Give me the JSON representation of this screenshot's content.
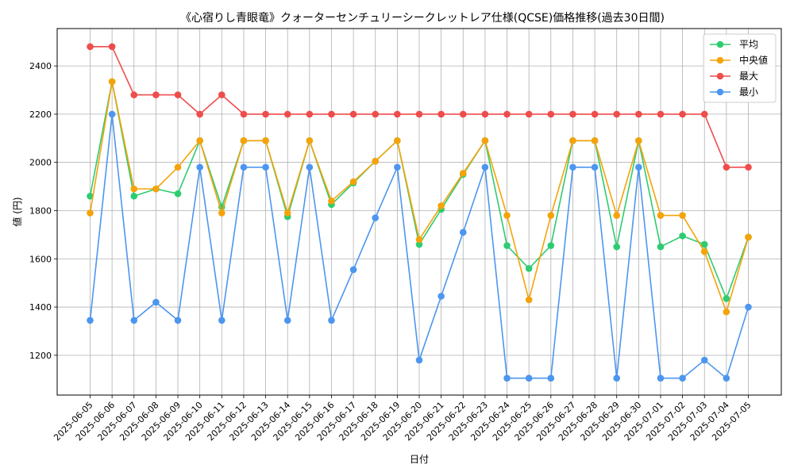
{
  "chart_data": {
    "type": "line",
    "title": "《心宿りし青眼竜》クォーターセンチュリーシークレットレア仕様(QCSE)価格推移(過去30日間)",
    "xlabel": "日付",
    "ylabel": "値 (円)",
    "ylim": [
      1035,
      2555
    ],
    "yticks": [
      1200,
      1400,
      1600,
      1800,
      2000,
      2200,
      2400
    ],
    "grid": true,
    "legend_position": "top-right",
    "categories": [
      "2025-06-05",
      "2025-06-06",
      "2025-06-07",
      "2025-06-08",
      "2025-06-09",
      "2025-06-10",
      "2025-06-11",
      "2025-06-12",
      "2025-06-13",
      "2025-06-14",
      "2025-06-15",
      "2025-06-16",
      "2025-06-17",
      "2025-06-18",
      "2025-06-19",
      "2025-06-20",
      "2025-06-21",
      "2025-06-22",
      "2025-06-23",
      "2025-06-24",
      "2025-06-25",
      "2025-06-26",
      "2025-06-27",
      "2025-06-28",
      "2025-06-29",
      "2025-06-30",
      "2025-07-01",
      "2025-07-02",
      "2025-07-03",
      "2025-07-04",
      "2025-07-05"
    ],
    "series": [
      {
        "name": "平均",
        "color": "#2ecc71",
        "values": [
          1860,
          2335,
          1860,
          1890,
          1870,
          2090,
          1815,
          2090,
          2090,
          1775,
          2090,
          1825,
          1915,
          2005,
          2090,
          1660,
          1805,
          1950,
          2090,
          1655,
          1560,
          1655,
          2090,
          2090,
          1650,
          2090,
          1650,
          1695,
          1660,
          1435,
          1690
        ]
      },
      {
        "name": "中央値",
        "color": "#f5a30a",
        "values": [
          1790,
          2335,
          1890,
          1890,
          1980,
          2090,
          1790,
          2090,
          2090,
          1790,
          2090,
          1840,
          1920,
          2005,
          2090,
          1680,
          1820,
          1955,
          2090,
          1780,
          1430,
          1780,
          2090,
          2090,
          1780,
          2090,
          1780,
          1780,
          1630,
          1380,
          1690
        ]
      },
      {
        "name": "最大",
        "color": "#ef4c4c",
        "values": [
          2480,
          2480,
          2280,
          2280,
          2280,
          2200,
          2280,
          2200,
          2200,
          2200,
          2200,
          2200,
          2200,
          2200,
          2200,
          2200,
          2200,
          2200,
          2200,
          2200,
          2200,
          2200,
          2200,
          2200,
          2200,
          2200,
          2200,
          2200,
          2200,
          1980,
          1980
        ]
      },
      {
        "name": "最小",
        "color": "#4c96ef",
        "values": [
          1345,
          2200,
          1345,
          1420,
          1345,
          1980,
          1345,
          1980,
          1980,
          1345,
          1980,
          1345,
          1555,
          1770,
          1980,
          1180,
          1445,
          1710,
          1980,
          1105,
          1105,
          1105,
          1980,
          1980,
          1105,
          1980,
          1105,
          1105,
          1180,
          1105,
          1400
        ]
      }
    ]
  }
}
